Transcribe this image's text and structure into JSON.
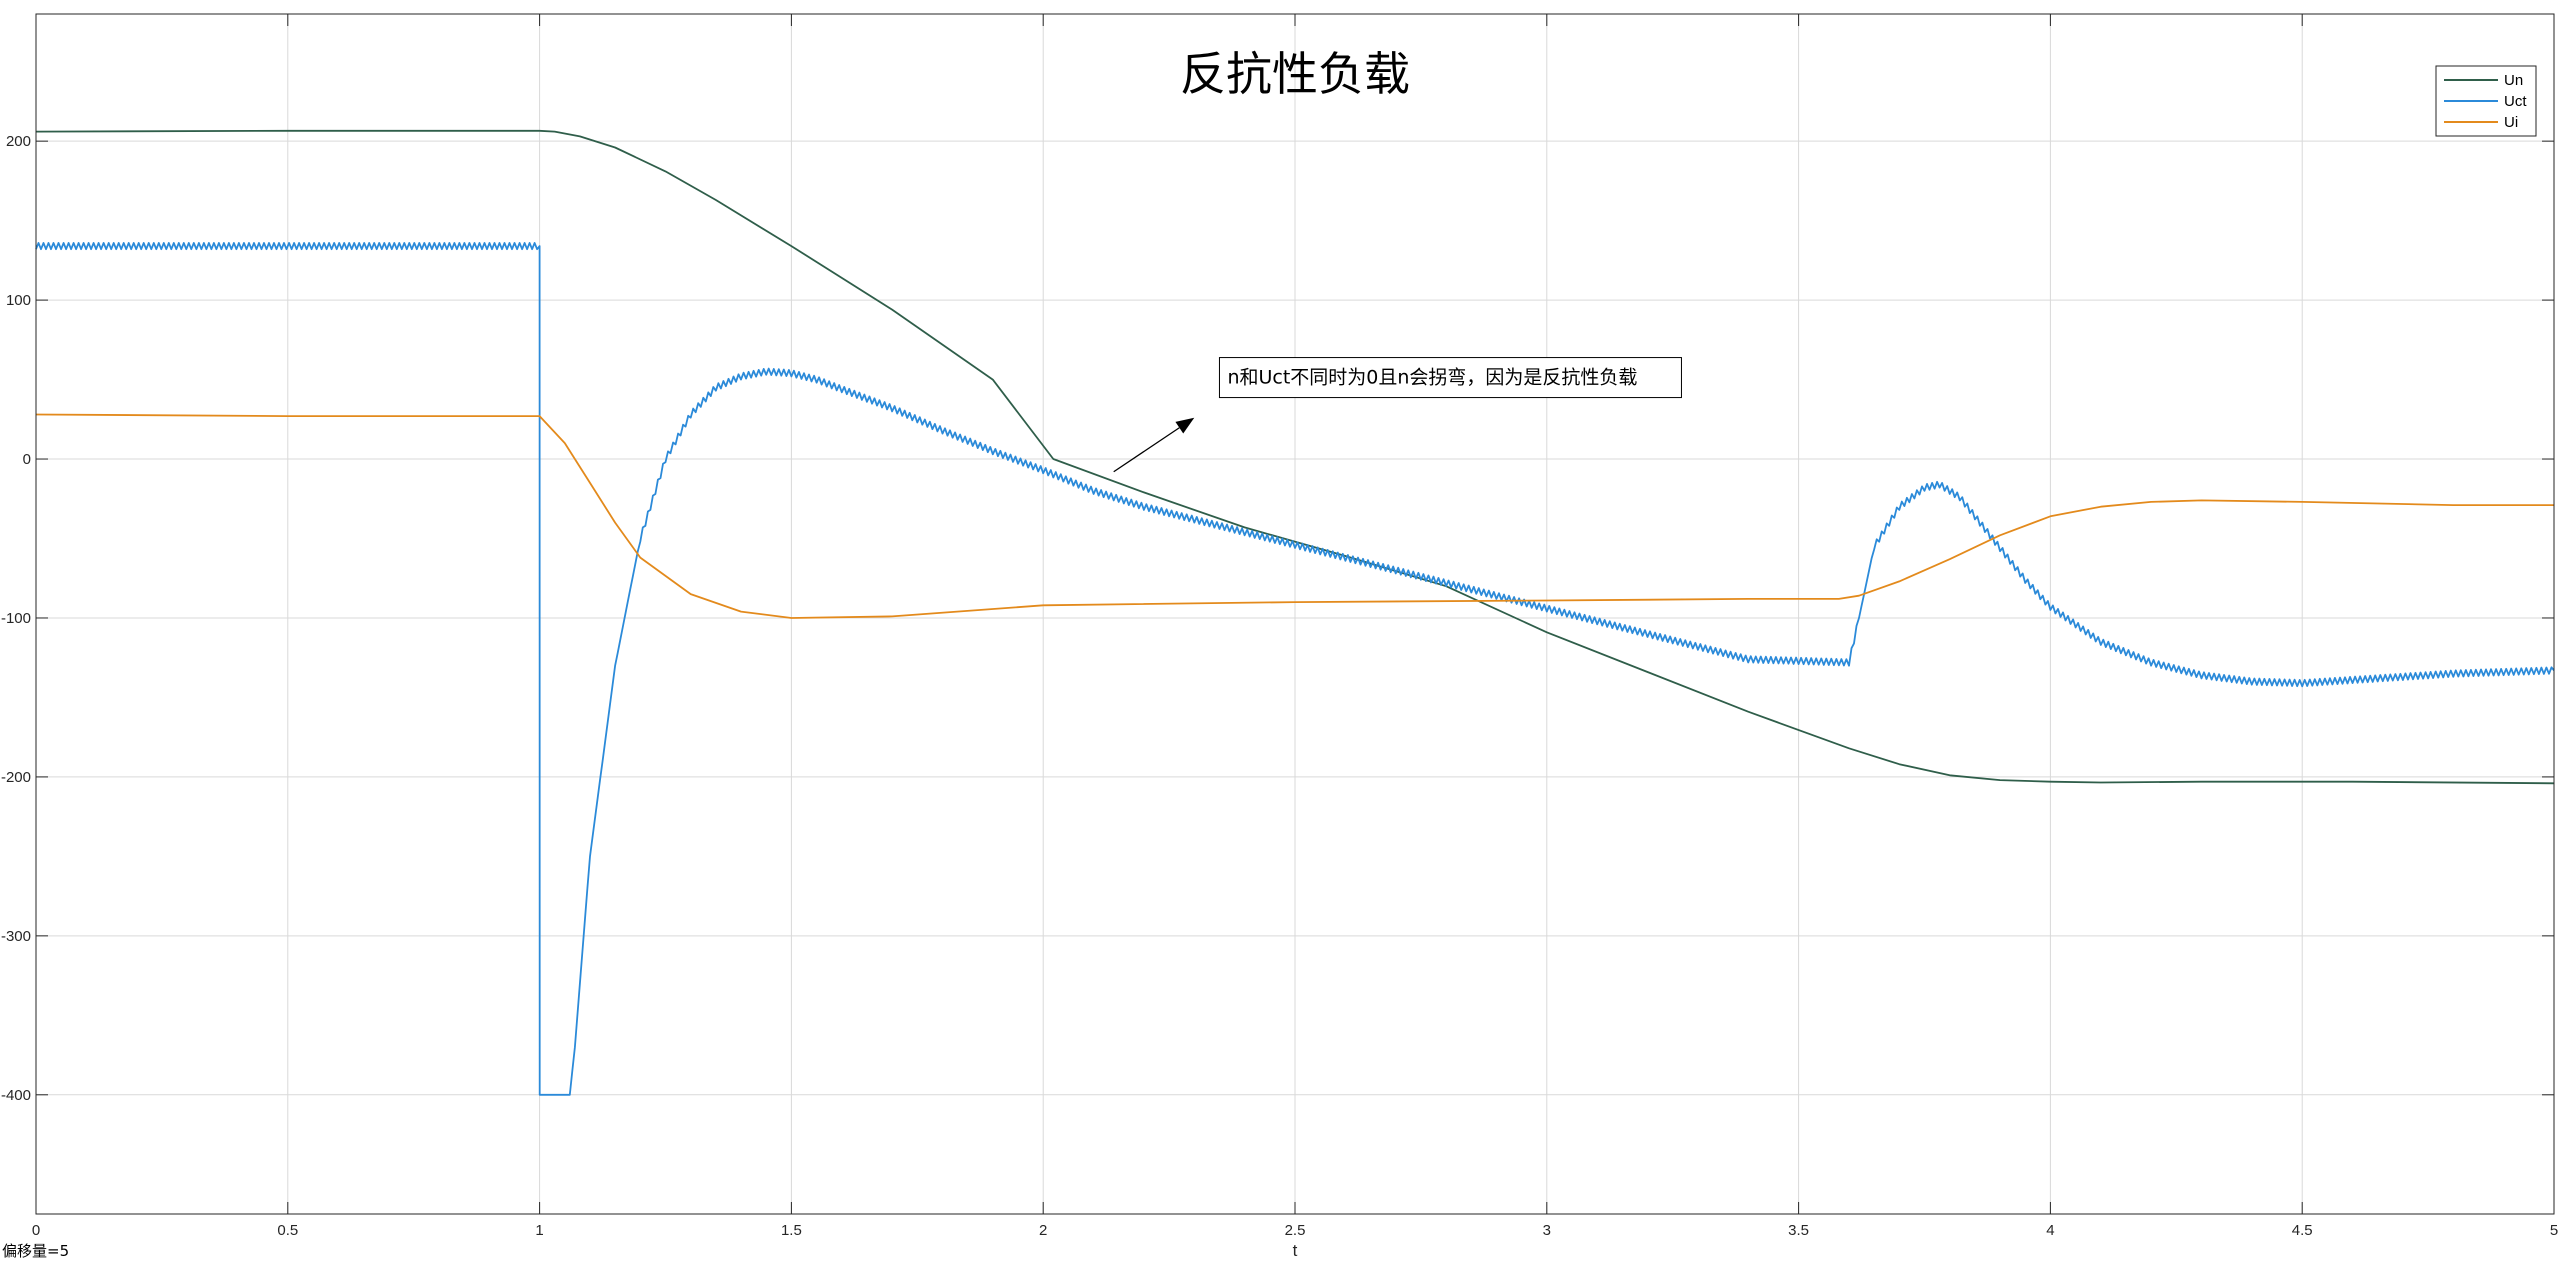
{
  "footer_note": "偏移量=5",
  "chart_data": {
    "type": "line",
    "title": "反抗性负载",
    "xlabel": "t",
    "ylabel": "",
    "xlim": [
      0,
      5
    ],
    "ylim": [
      -475,
      280
    ],
    "grid": true,
    "legend_position": "top-right",
    "x_ticks": [
      0,
      0.5,
      1,
      1.5,
      2,
      2.5,
      3,
      3.5,
      4,
      4.5,
      5
    ],
    "x_tick_labels": [
      "0",
      "0.5",
      "1",
      "1.5",
      "2",
      "2.5",
      "3",
      "3.5",
      "4",
      "4.5",
      "5"
    ],
    "y_ticks": [
      200,
      100,
      0,
      -100,
      -200,
      -300,
      -400
    ],
    "y_tick_labels": [
      "200",
      "100",
      "0",
      "-100",
      "-200",
      "-300",
      "-400"
    ],
    "annotation": {
      "text": "n和Uct不同时为0且n会拐弯，因为是反抗性负载",
      "arrow_from": [
        2.14,
        -8
      ],
      "arrow_to": [
        2.3,
        26
      ],
      "box_anchor": [
        2.35,
        50
      ]
    },
    "series": [
      {
        "name": "Un",
        "color": "#2f5e4a",
        "x": [
          0,
          0.5,
          1.0,
          1.03,
          1.08,
          1.15,
          1.25,
          1.35,
          1.5,
          1.7,
          1.9,
          2.02,
          2.2,
          2.4,
          2.6,
          2.8,
          3.0,
          3.2,
          3.4,
          3.6,
          3.7,
          3.8,
          3.9,
          4.0,
          4.1,
          4.3,
          4.6,
          5.0
        ],
        "y": [
          206,
          206.5,
          206.5,
          206,
          203,
          196,
          181,
          163,
          134,
          94,
          50,
          0,
          -21,
          -43,
          -61,
          -80,
          -109,
          -134,
          -159,
          -182,
          -192,
          -199,
          -202,
          -203,
          -203.5,
          -203,
          -203,
          -204
        ]
      },
      {
        "name": "Uct",
        "color": "#2b8ad9",
        "ripple": 2,
        "x": [
          0,
          1.0,
          1.0001,
          1.06,
          1.07,
          1.1,
          1.15,
          1.2,
          1.25,
          1.3,
          1.35,
          1.4,
          1.45,
          1.5,
          1.55,
          1.6,
          1.7,
          1.8,
          1.9,
          2.0,
          2.1,
          2.2,
          2.4,
          2.6,
          2.8,
          3.0,
          3.2,
          3.4,
          3.6,
          3.62,
          3.65,
          3.7,
          3.75,
          3.78,
          3.82,
          3.88,
          3.95,
          4.0,
          4.1,
          4.2,
          4.3,
          4.4,
          4.5,
          4.6,
          4.8,
          5.0
        ],
        "y": [
          134,
          134,
          -400,
          -400,
          -370,
          -250,
          -130,
          -50,
          0,
          28,
          45,
          52,
          55,
          54,
          50,
          44,
          32,
          18,
          5,
          -7,
          -20,
          -30,
          -46,
          -62,
          -78,
          -94,
          -110,
          -126,
          -128,
          -100,
          -55,
          -30,
          -18,
          -16,
          -24,
          -48,
          -76,
          -93,
          -115,
          -128,
          -136,
          -140,
          -141,
          -139,
          -135,
          -133
        ]
      },
      {
        "name": "Ui",
        "color": "#e38a1c",
        "x": [
          0,
          0.5,
          1.0,
          1.05,
          1.1,
          1.15,
          1.2,
          1.3,
          1.4,
          1.5,
          1.7,
          2.0,
          2.5,
          3.0,
          3.4,
          3.58,
          3.62,
          3.7,
          3.8,
          3.9,
          4.0,
          4.1,
          4.2,
          4.3,
          4.5,
          4.8,
          5.0
        ],
        "y": [
          28,
          27,
          27,
          10,
          -15,
          -40,
          -62,
          -85,
          -96,
          -100,
          -99,
          -92,
          -90,
          -89,
          -88,
          -88,
          -86,
          -77,
          -63,
          -48,
          -36,
          -30,
          -27,
          -26,
          -27,
          -29,
          -29
        ]
      }
    ]
  }
}
